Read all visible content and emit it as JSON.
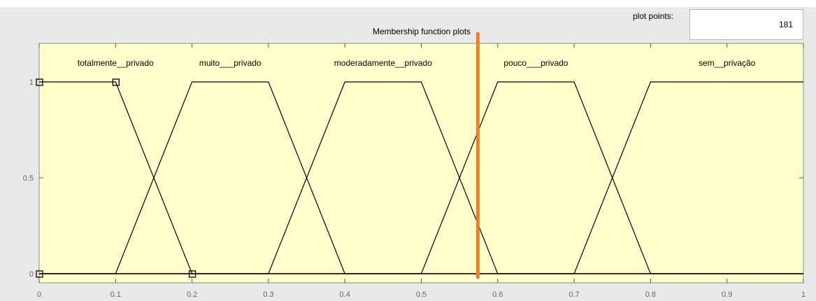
{
  "header": {
    "title": "Membership function plots",
    "plot_points_label": "plot points:",
    "plot_points_value": "181"
  },
  "colors": {
    "plot_background": "#ffffcc",
    "curve": "#000000",
    "marker_line": "#f07f22"
  },
  "chart_data": {
    "type": "line",
    "title": "Membership function plots",
    "xlabel": "",
    "ylabel": "",
    "xlim": [
      0,
      1
    ],
    "ylim": [
      0,
      1
    ],
    "x_ticks": [
      "0",
      "0.1",
      "0.2",
      "0.3",
      "0.4",
      "0.5",
      "0.6",
      "0.7",
      "0.8",
      "0.9",
      "1"
    ],
    "y_ticks": [
      "0",
      "0.5",
      "1"
    ],
    "series": [
      {
        "name": "totalmente__privado",
        "points": [
          [
            0,
            1
          ],
          [
            0.1,
            1
          ],
          [
            0.2,
            0
          ],
          [
            1,
            0
          ]
        ]
      },
      {
        "name": "muito___privado",
        "points": [
          [
            0,
            0
          ],
          [
            0.1,
            0
          ],
          [
            0.2,
            1
          ],
          [
            0.3,
            1
          ],
          [
            0.4,
            0
          ],
          [
            1,
            0
          ]
        ]
      },
      {
        "name": "moderadamente__privado",
        "points": [
          [
            0,
            0
          ],
          [
            0.3,
            0
          ],
          [
            0.4,
            1
          ],
          [
            0.5,
            1
          ],
          [
            0.6,
            0
          ],
          [
            1,
            0
          ]
        ]
      },
      {
        "name": "pouco___privado",
        "points": [
          [
            0,
            0
          ],
          [
            0.5,
            0
          ],
          [
            0.6,
            1
          ],
          [
            0.7,
            1
          ],
          [
            0.8,
            0
          ],
          [
            1,
            0
          ]
        ]
      },
      {
        "name": "sem__privação",
        "points": [
          [
            0,
            0
          ],
          [
            0.7,
            0
          ],
          [
            0.8,
            1
          ],
          [
            1,
            1
          ]
        ]
      }
    ],
    "labels": [
      {
        "text": "totalmente__privado",
        "x": 0.1
      },
      {
        "text": "muito___privado",
        "x": 0.25
      },
      {
        "text": "moderadamente__privado",
        "x": 0.45
      },
      {
        "text": "pouco___privado",
        "x": 0.65
      },
      {
        "text": "sem__privação",
        "x": 0.9
      }
    ],
    "square_markers": [
      [
        0,
        1
      ],
      [
        0.1,
        1
      ],
      [
        0,
        0
      ],
      [
        0.2,
        0
      ]
    ],
    "vertical_marker_x": 0.574
  }
}
